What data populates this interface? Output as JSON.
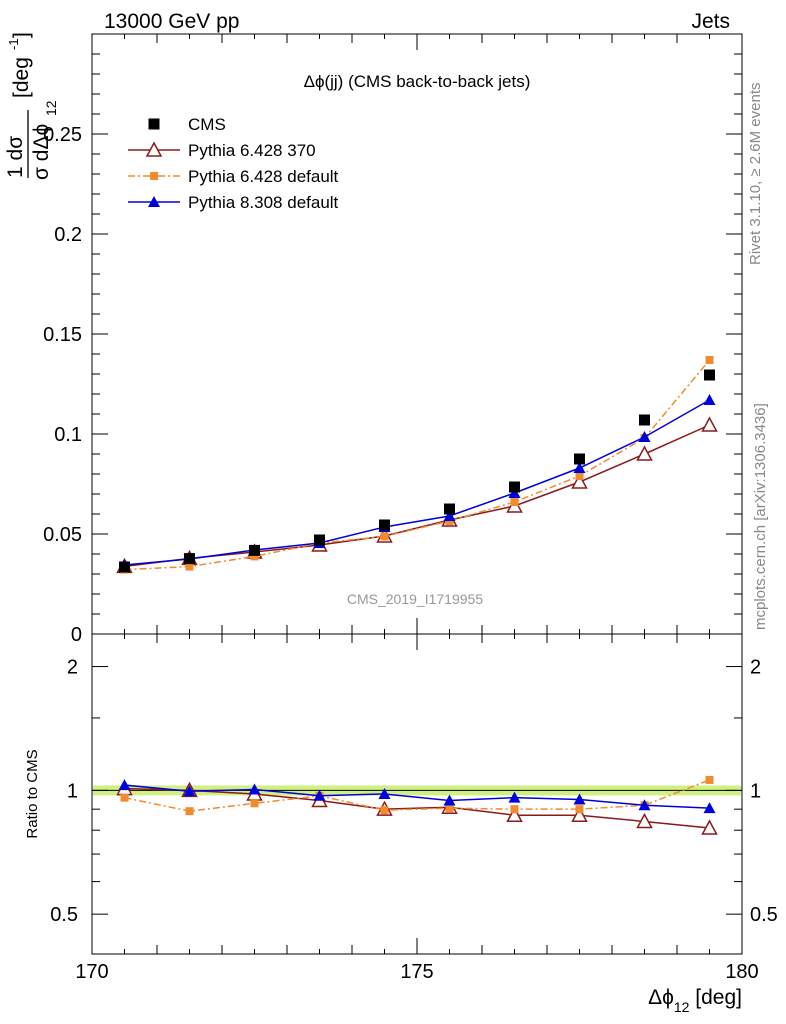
{
  "header": {
    "left": "13000 GeV pp",
    "right": "Jets"
  },
  "main_plot": {
    "title": "Δϕ(jj) (CMS back-to-back jets)",
    "ylabel_main": "[deg",
    "ylabel_exp": "-1",
    "ylabel_close": "]",
    "ylabel_frac_num": "1 dσ",
    "ylabel_frac_den": "σ dΔϕ",
    "ylabel_frac_sub": "12",
    "watermark": "CMS_2019_I1719955",
    "yticks": [
      "0",
      "0.05",
      "0.1",
      "0.15",
      "0.2",
      "0.25"
    ]
  },
  "ratio_plot": {
    "ylabel": "Ratio to CMS",
    "yticks": [
      "0.5",
      "1",
      "2"
    ],
    "right_yticks": [
      "0.5",
      "1",
      "2"
    ]
  },
  "x_axis": {
    "label": "Δϕ",
    "label_sub": "12",
    "label_unit": " [deg]",
    "ticks": [
      "170",
      "175",
      "180"
    ]
  },
  "side_labels": {
    "rivet": "Rivet 3.1.10, ≥ 2.6M events",
    "mcplots": "mcplots.cern.ch [arXiv:1306.3436]"
  },
  "chart_data": {
    "type": "scatter",
    "x": [
      170.5,
      171.5,
      172.5,
      173.5,
      174.5,
      175.5,
      176.5,
      177.5,
      178.5,
      179.5
    ],
    "xlim": [
      170,
      180
    ],
    "ylim": [
      0,
      0.3
    ],
    "ratio_ylim": [
      0.4,
      2.4
    ],
    "ratio_scale": "log",
    "colors": {
      "CMS": "#000000",
      "P6_370": "#8b1a1a",
      "P6_def": "#f28a30",
      "P8_def": "#0000dd",
      "band": "#ccee77"
    },
    "series": [
      {
        "name": "CMS",
        "values": [
          0.0335,
          0.0377,
          0.0418,
          0.047,
          0.0545,
          0.0625,
          0.0735,
          0.0875,
          0.107,
          0.1295
        ]
      },
      {
        "name": "Pythia 6.428 370",
        "values": [
          0.0338,
          0.0378,
          0.041,
          0.0445,
          0.049,
          0.057,
          0.064,
          0.076,
          0.09,
          0.1045
        ]
      },
      {
        "name": "Pythia 6.428 default",
        "values": [
          0.0322,
          0.0337,
          0.0388,
          0.0455,
          0.0488,
          0.0565,
          0.066,
          0.079,
          0.098,
          0.137
        ]
      },
      {
        "name": "Pythia 8.308 default",
        "values": [
          0.0345,
          0.0375,
          0.042,
          0.0455,
          0.0535,
          0.059,
          0.0705,
          0.083,
          0.0985,
          0.117
        ]
      }
    ],
    "ratios": [
      {
        "name": "Pythia 6.428 370",
        "values": [
          1.01,
          1.0,
          0.98,
          0.945,
          0.9,
          0.91,
          0.87,
          0.87,
          0.84,
          0.81
        ]
      },
      {
        "name": "Pythia 6.428 default",
        "values": [
          0.96,
          0.89,
          0.93,
          0.97,
          0.895,
          0.905,
          0.9,
          0.9,
          0.92,
          1.06
        ]
      },
      {
        "name": "Pythia 8.308 default",
        "values": [
          1.03,
          0.995,
          1.005,
          0.97,
          0.98,
          0.945,
          0.96,
          0.95,
          0.92,
          0.905
        ]
      }
    ]
  }
}
